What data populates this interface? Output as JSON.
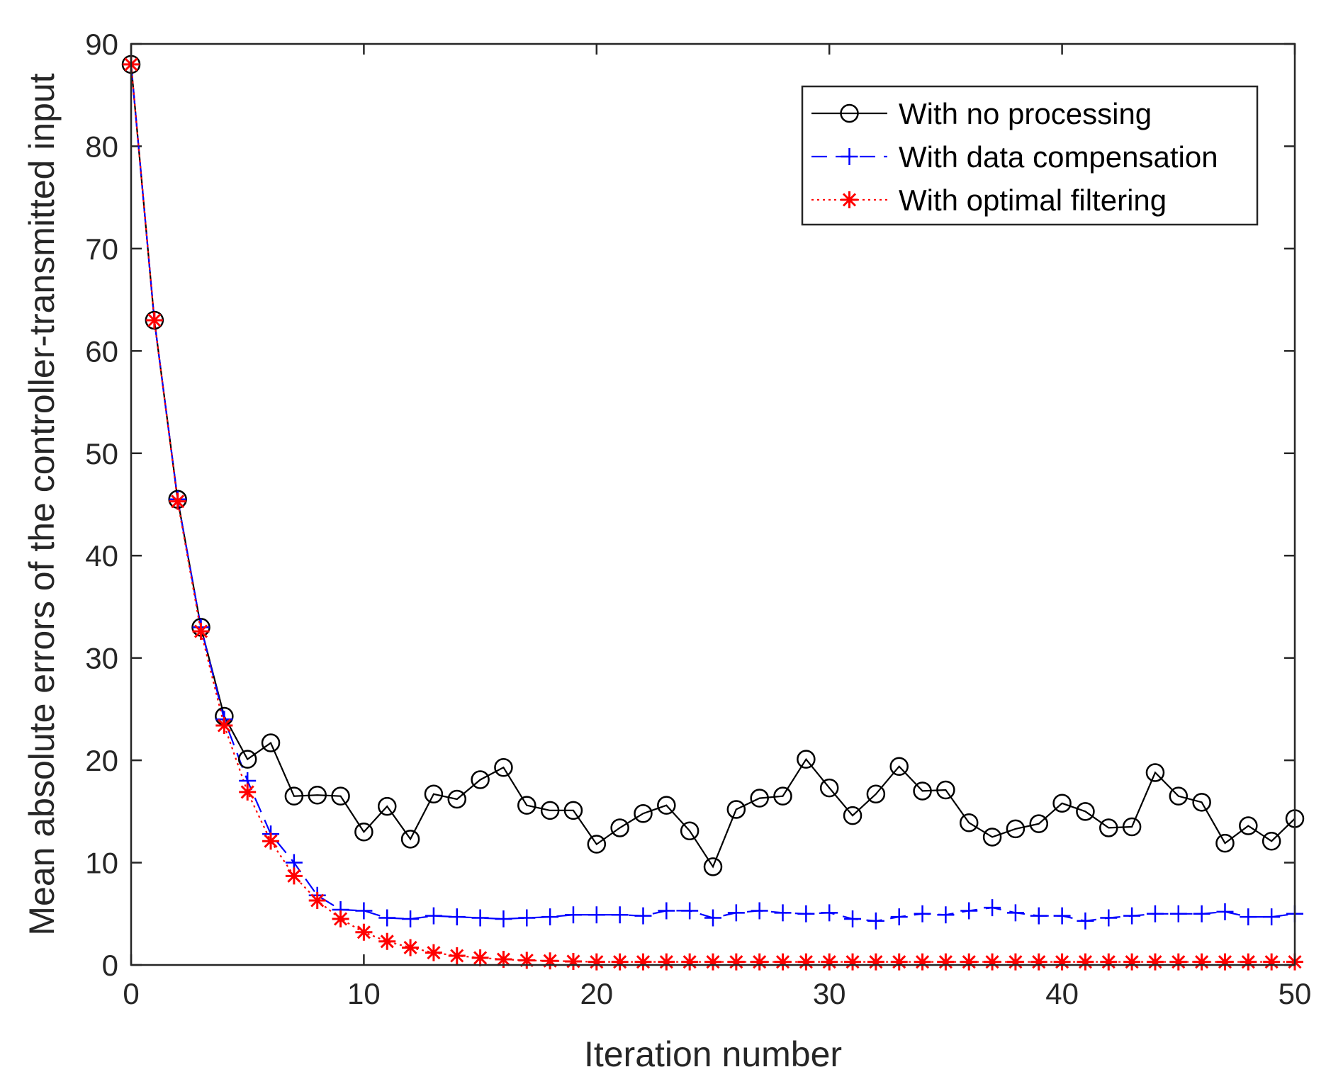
{
  "chart_data": {
    "type": "line",
    "title": "",
    "xlabel": "Iteration number",
    "ylabel": "Mean absolute errors of the controller-transmitted input",
    "xlim": [
      0,
      50
    ],
    "ylim": [
      0,
      90
    ],
    "xticks": [
      0,
      10,
      20,
      30,
      40,
      50
    ],
    "yticks": [
      0,
      10,
      20,
      30,
      40,
      50,
      60,
      70,
      80,
      90
    ],
    "legend_position": "top-right",
    "x": [
      0,
      1,
      2,
      3,
      4,
      5,
      6,
      7,
      8,
      9,
      10,
      11,
      12,
      13,
      14,
      15,
      16,
      17,
      18,
      19,
      20,
      21,
      22,
      23,
      24,
      25,
      26,
      27,
      28,
      29,
      30,
      31,
      32,
      33,
      34,
      35,
      36,
      37,
      38,
      39,
      40,
      41,
      42,
      43,
      44,
      45,
      46,
      47,
      48,
      49,
      50
    ],
    "series": [
      {
        "name": "With no processing",
        "color": "#000000",
        "line_style": "solid",
        "marker": "circle",
        "values": [
          88,
          63,
          45.5,
          33,
          24.3,
          20.1,
          21.7,
          16.5,
          16.6,
          16.5,
          13,
          15.5,
          12.3,
          16.7,
          16.2,
          18.1,
          19.3,
          15.6,
          15.1,
          15.1,
          11.8,
          13.4,
          14.8,
          15.6,
          13.1,
          9.6,
          15.2,
          16.3,
          16.5,
          20.1,
          17.3,
          14.6,
          16.7,
          19.4,
          17,
          17.1,
          13.9,
          12.5,
          13.3,
          13.8,
          15.8,
          15,
          13.4,
          13.5,
          18.8,
          16.5,
          15.9,
          11.9,
          13.6,
          12.1,
          14.3
        ]
      },
      {
        "name": "With data compensation",
        "color": "#0000ff",
        "line_style": "dashed",
        "marker": "plus",
        "values": [
          88,
          63,
          45.5,
          33,
          24,
          18,
          12.8,
          10,
          6.8,
          5.4,
          5.3,
          4.6,
          4.5,
          4.8,
          4.7,
          4.6,
          4.5,
          4.6,
          4.7,
          4.9,
          4.9,
          4.9,
          4.8,
          5.3,
          5.3,
          4.6,
          5.1,
          5.3,
          5.1,
          5,
          5.1,
          4.5,
          4.3,
          4.7,
          5,
          4.9,
          5.3,
          5.6,
          5.1,
          4.8,
          4.8,
          4.3,
          4.6,
          4.8,
          5,
          5,
          5,
          5.2,
          4.7,
          4.7,
          5
        ]
      },
      {
        "name": "With optimal filtering",
        "color": "#ff0000",
        "line_style": "dotted",
        "marker": "star",
        "values": [
          88,
          63,
          45.3,
          32.6,
          23.4,
          16.9,
          12.1,
          8.7,
          6.3,
          4.5,
          3.2,
          2.3,
          1.7,
          1.2,
          0.9,
          0.7,
          0.55,
          0.45,
          0.4,
          0.35,
          0.3,
          0.3,
          0.3,
          0.3,
          0.3,
          0.3,
          0.3,
          0.3,
          0.3,
          0.3,
          0.3,
          0.3,
          0.3,
          0.3,
          0.3,
          0.3,
          0.3,
          0.3,
          0.3,
          0.3,
          0.3,
          0.3,
          0.3,
          0.3,
          0.3,
          0.3,
          0.3,
          0.3,
          0.3,
          0.3,
          0.3
        ]
      }
    ]
  }
}
